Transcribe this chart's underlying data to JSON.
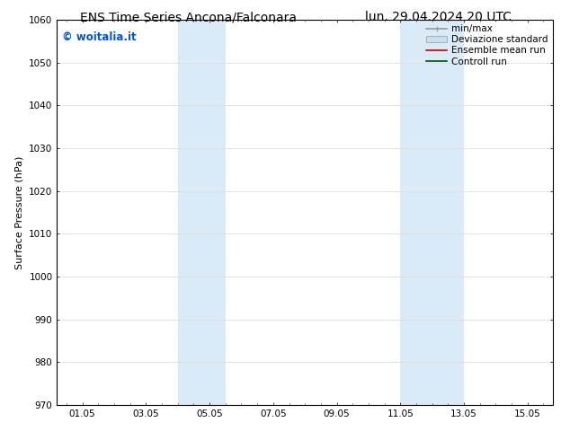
{
  "title_left": "ENS Time Series Ancona/Falconara",
  "title_right": "lun. 29.04.2024 20 UTC",
  "ylabel": "Surface Pressure (hPa)",
  "ylim": [
    970,
    1060
  ],
  "yticks": [
    970,
    980,
    990,
    1000,
    1010,
    1020,
    1030,
    1040,
    1050,
    1060
  ],
  "xtick_labels": [
    "01.05",
    "03.05",
    "05.05",
    "07.05",
    "09.05",
    "11.05",
    "13.05",
    "15.05"
  ],
  "xtick_positions": [
    1,
    3,
    5,
    7,
    9,
    11,
    13,
    15
  ],
  "xlim_start": 0.2,
  "xlim_end": 15.8,
  "shaded_bands": [
    {
      "x_start": 4.0,
      "x_end": 5.5
    },
    {
      "x_start": 11.0,
      "x_end": 13.0
    }
  ],
  "shade_color": "#daeaf6",
  "shade_alpha": 1.0,
  "watermark_text": "© woitalia.it",
  "watermark_color": "#0055cc",
  "legend_entries": [
    {
      "label": "min/max",
      "color": "#999999",
      "lw": 1.2
    },
    {
      "label": "Deviazione standard",
      "color": "#c8dff0",
      "lw": 5
    },
    {
      "label": "Ensemble mean run",
      "color": "#cc0000",
      "lw": 1.2
    },
    {
      "label": "Controll run",
      "color": "#005500",
      "lw": 1.2
    }
  ],
  "background_color": "#ffffff",
  "grid_color": "#dddddd",
  "title_fontsize": 10,
  "axis_label_fontsize": 8,
  "tick_fontsize": 7.5,
  "watermark_fontsize": 8.5,
  "legend_fontsize": 7.5
}
